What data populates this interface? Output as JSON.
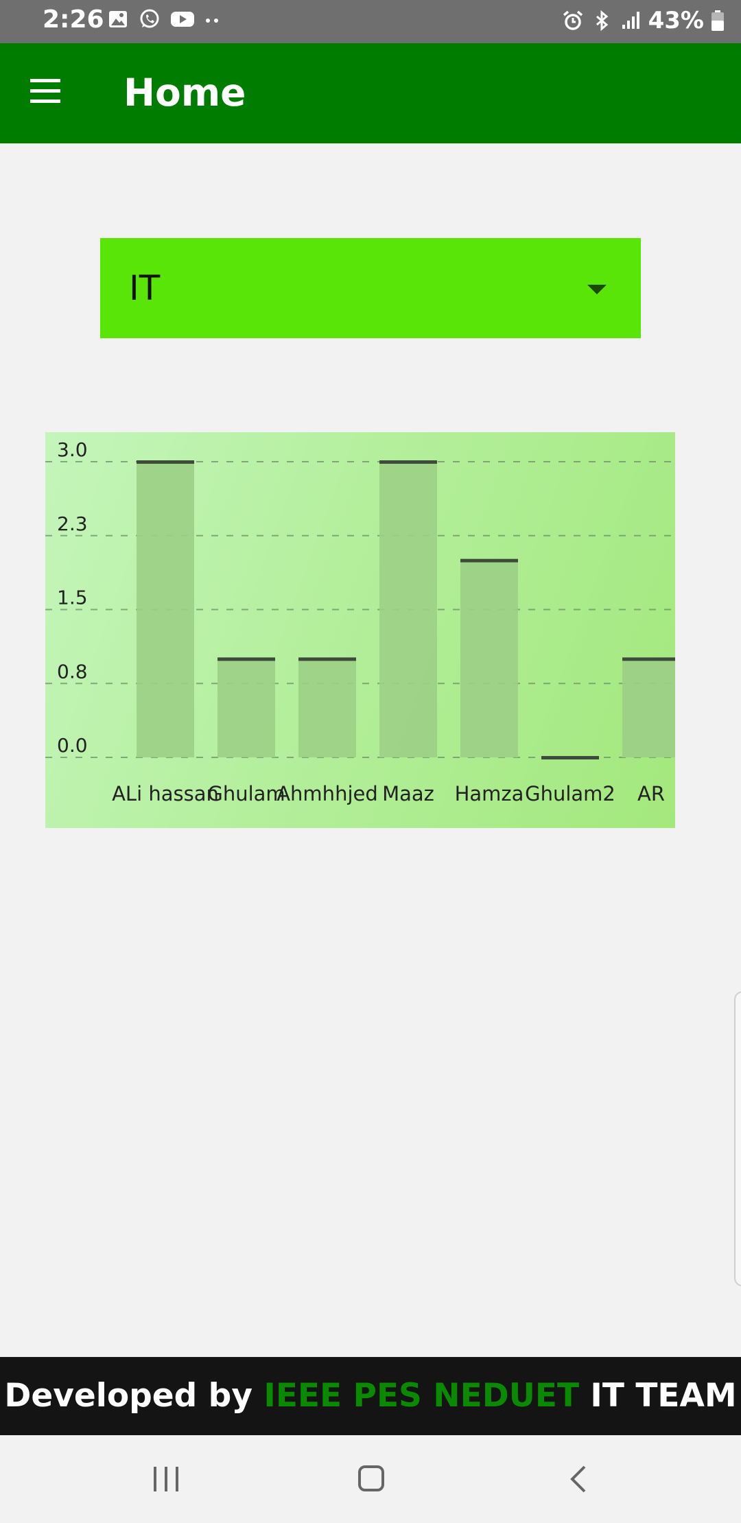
{
  "status_bar": {
    "time": "2:26",
    "battery_percent": "43%",
    "left_icons": [
      "image-icon",
      "whatsapp-icon",
      "youtube-icon",
      "more-notifications-icon"
    ],
    "right_icons": [
      "alarm-icon",
      "bluetooth-icon",
      "signal-icon",
      "battery-icon"
    ]
  },
  "app_bar": {
    "title": "Home",
    "menu_icon": "hamburger-menu-icon",
    "color": "#007d00"
  },
  "dropdown": {
    "selected": "IT",
    "color": "#59e507"
  },
  "chart_data": {
    "type": "bar",
    "categories": [
      "ALi hassan",
      "Ghulam",
      "Ahmhhjed",
      "Maaz",
      "Hamza",
      "Ghulam2",
      "AR"
    ],
    "values": [
      3,
      1,
      1,
      3,
      2,
      0,
      1
    ],
    "yticks": [
      "3.0",
      "2.3",
      "1.5",
      "0.8",
      "0.0"
    ],
    "ylim": [
      0,
      3
    ],
    "grid": true,
    "bar_color": "#9ccf86",
    "bar_top_color": "#3e4a3c"
  },
  "footer": {
    "prefix": "Developed by ",
    "highlight": "IEEE PES NEDUET",
    "suffix": " IT TEAM",
    "highlight_color": "#0a8a00"
  },
  "nav_bar": {
    "icons": [
      "recents-icon",
      "home-icon",
      "back-icon"
    ]
  }
}
